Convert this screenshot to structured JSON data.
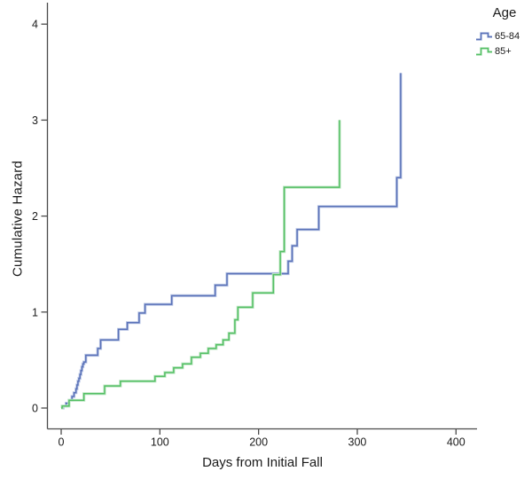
{
  "chart_data": {
    "type": "line",
    "subtype": "step",
    "title": "",
    "xlabel": "Days from Initial Fall",
    "ylabel": "Cumulative Hazard",
    "xlim": [
      0,
      400
    ],
    "ylim": [
      0,
      4
    ],
    "x_ticks": [
      0,
      100,
      200,
      300,
      400
    ],
    "y_ticks": [
      0,
      1,
      2,
      3,
      4
    ],
    "grid": false,
    "legend_position": "top-right",
    "legend_title": "Age",
    "axis_color": "#4a4a4a",
    "text_color": "#1a1a1a",
    "series": [
      {
        "name": "65-84",
        "color": "#5a72b8",
        "halo_color": "#bcc8e6",
        "points": [
          [
            1,
            0.0
          ],
          [
            2,
            0.02
          ],
          [
            5,
            0.05
          ],
          [
            8,
            0.08
          ],
          [
            11,
            0.12
          ],
          [
            13,
            0.16
          ],
          [
            15,
            0.2
          ],
          [
            16,
            0.24
          ],
          [
            17,
            0.28
          ],
          [
            18,
            0.31
          ],
          [
            19,
            0.35
          ],
          [
            20,
            0.39
          ],
          [
            21,
            0.43
          ],
          [
            22,
            0.46
          ],
          [
            23,
            0.48
          ],
          [
            25,
            0.55
          ],
          [
            37,
            0.62
          ],
          [
            40,
            0.71
          ],
          [
            58,
            0.82
          ],
          [
            67,
            0.89
          ],
          [
            79,
            0.99
          ],
          [
            85,
            1.08
          ],
          [
            112,
            1.17
          ],
          [
            156,
            1.28
          ],
          [
            168,
            1.4
          ],
          [
            230,
            1.53
          ],
          [
            234,
            1.69
          ],
          [
            239,
            1.86
          ],
          [
            261,
            2.1
          ],
          [
            340,
            2.4
          ],
          [
            344,
            3.49
          ]
        ]
      },
      {
        "name": "85+",
        "color": "#55c065",
        "halo_color": "#c0e7c6",
        "points": [
          [
            0,
            0.0
          ],
          [
            1,
            0.02
          ],
          [
            8,
            0.08
          ],
          [
            23,
            0.15
          ],
          [
            44,
            0.23
          ],
          [
            60,
            0.28
          ],
          [
            95,
            0.33
          ],
          [
            105,
            0.37
          ],
          [
            114,
            0.42
          ],
          [
            123,
            0.46
          ],
          [
            132,
            0.53
          ],
          [
            141,
            0.57
          ],
          [
            149,
            0.62
          ],
          [
            157,
            0.66
          ],
          [
            164,
            0.71
          ],
          [
            170,
            0.78
          ],
          [
            176,
            0.92
          ],
          [
            179,
            1.05
          ],
          [
            194,
            1.2
          ],
          [
            215,
            1.39
          ],
          [
            222,
            1.63
          ],
          [
            226,
            2.3
          ],
          [
            282,
            3.0
          ]
        ]
      }
    ]
  },
  "legend": {
    "title": "Age",
    "items": [
      {
        "label": "65-84"
      },
      {
        "label": "85+"
      }
    ]
  }
}
